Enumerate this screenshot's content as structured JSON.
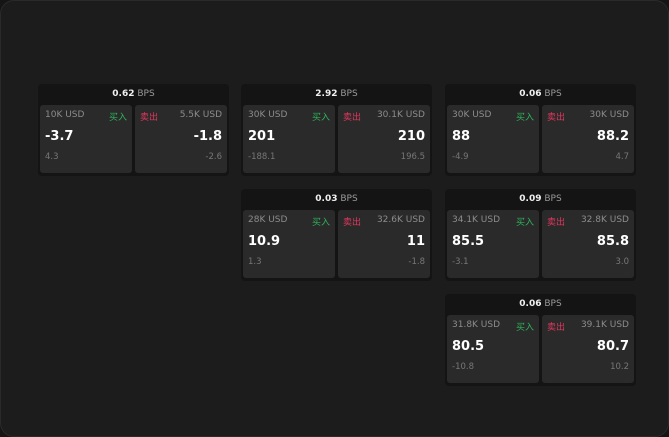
{
  "unit": "BPS",
  "buy_label": "买入",
  "sell_label": "卖出",
  "colors": {
    "buy": "#2fb35a",
    "sell": "#e0375e"
  },
  "panels": [
    {
      "spread": "0.62",
      "bid": {
        "size": "10K USD",
        "price": "-3.7",
        "change": "4.3"
      },
      "ask": {
        "size": "5.5K USD",
        "price": "-1.8",
        "change": "-2.6"
      }
    },
    {
      "spread": "2.92",
      "bid": {
        "size": "30K USD",
        "price": "201",
        "change": "-188.1"
      },
      "ask": {
        "size": "30.1K USD",
        "price": "210",
        "change": "196.5"
      }
    },
    {
      "spread": "0.06",
      "bid": {
        "size": "30K USD",
        "price": "88",
        "change": "-4.9"
      },
      "ask": {
        "size": "30K USD",
        "price": "88.2",
        "change": "4.7"
      }
    },
    {
      "spread": "0.03",
      "bid": {
        "size": "28K USD",
        "price": "10.9",
        "change": "1.3"
      },
      "ask": {
        "size": "32.6K USD",
        "price": "11",
        "change": "-1.8"
      }
    },
    {
      "spread": "0.09",
      "bid": {
        "size": "34.1K USD",
        "price": "85.5",
        "change": "-3.1"
      },
      "ask": {
        "size": "32.8K USD",
        "price": "85.8",
        "change": "3.0"
      }
    },
    {
      "spread": "0.06",
      "bid": {
        "size": "31.8K USD",
        "price": "80.5",
        "change": "-10.8"
      },
      "ask": {
        "size": "39.1K USD",
        "price": "80.7",
        "change": "10.2"
      }
    }
  ]
}
